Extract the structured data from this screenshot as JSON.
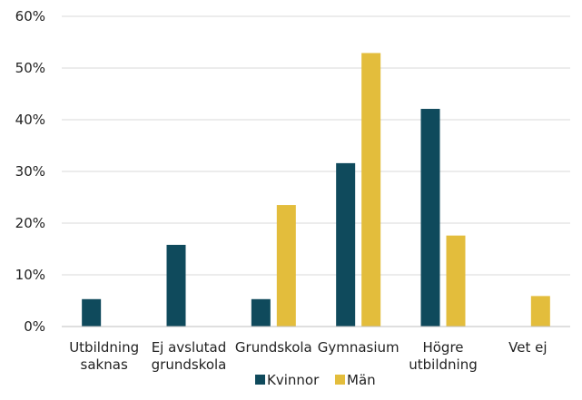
{
  "chart_data": {
    "type": "bar",
    "title": "",
    "xlabel": "",
    "ylabel": "",
    "categories": [
      [
        "Utbildning",
        "saknas"
      ],
      [
        "Ej avslutad",
        "grundskola"
      ],
      [
        "Grundskola"
      ],
      [
        "Gymnasium"
      ],
      [
        "Högre",
        "utbildning"
      ],
      [
        "Vet ej"
      ]
    ],
    "series": [
      {
        "name": "Kvinnor",
        "color": "#0f4a5c",
        "values": [
          5.3,
          15.8,
          5.3,
          31.6,
          42.1,
          0
        ]
      },
      {
        "name": "Män",
        "color": "#e3bd3c",
        "values": [
          0,
          0,
          23.5,
          52.9,
          17.6,
          5.9
        ]
      }
    ],
    "ylim": [
      0,
      60
    ],
    "yticks": [
      0,
      10,
      20,
      30,
      40,
      50,
      60
    ],
    "ytick_suffix": "%",
    "grid": true,
    "legend_position": "bottom"
  }
}
